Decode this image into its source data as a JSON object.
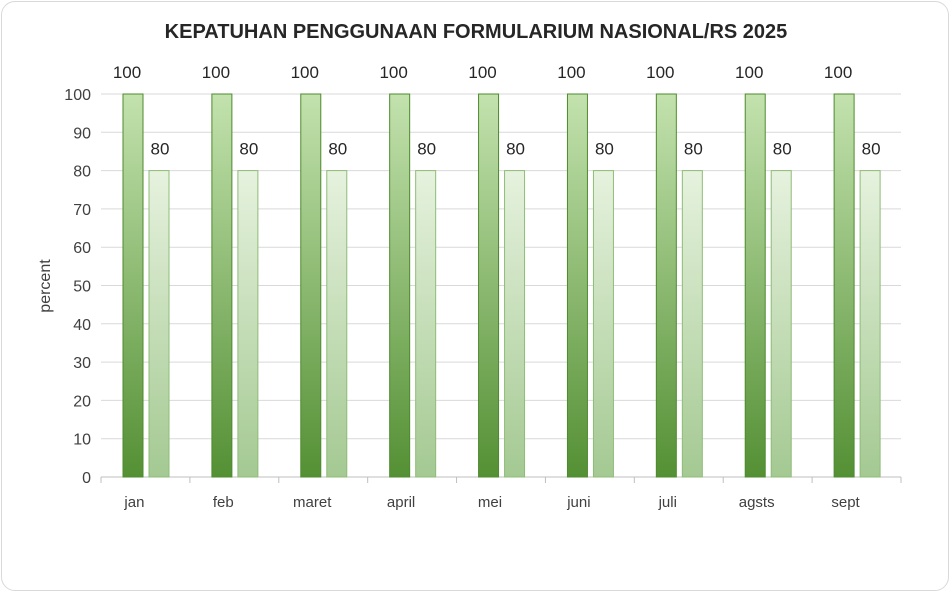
{
  "chart_data": {
    "type": "bar",
    "title": "KEPATUHAN PENGGUNAAN FORMULARIUM NASIONAL/RS 2025",
    "xlabel": "",
    "ylabel": "percent",
    "ylim": [
      0,
      100
    ],
    "yticks": [
      0,
      10,
      20,
      30,
      40,
      50,
      60,
      70,
      80,
      90,
      100
    ],
    "grid": true,
    "legend": "none",
    "categories": [
      "jan",
      "feb",
      "maret",
      "april",
      "mei",
      "juni",
      "juli",
      "agsts",
      "sept"
    ],
    "series": [
      {
        "values": [
          100,
          100,
          100,
          100,
          100,
          100,
          100,
          100,
          100
        ],
        "color": "#5e9a3a"
      },
      {
        "values": [
          80,
          80,
          80,
          80,
          80,
          80,
          80,
          80,
          80
        ],
        "color": "#a8cf8e"
      }
    ]
  }
}
